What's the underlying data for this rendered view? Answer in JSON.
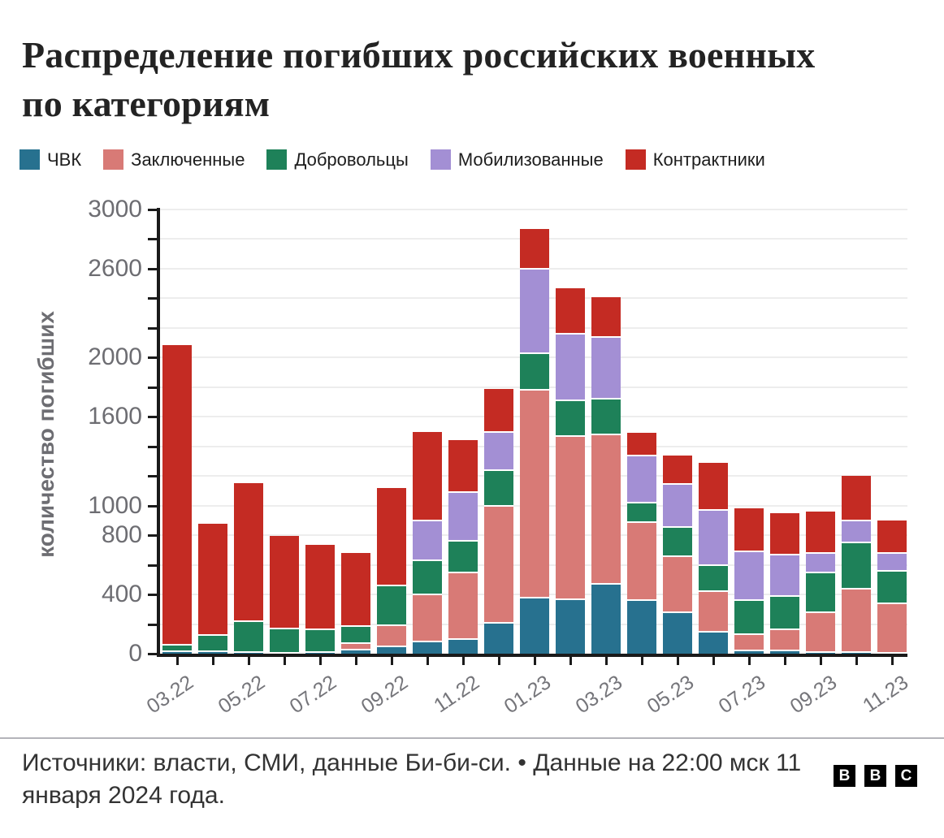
{
  "title": "Распределение погибших российских военных по категориям",
  "y_axis": {
    "title": "количество погибших"
  },
  "footer": {
    "source": "Источники: власти, СМИ, данные Би-би-си. • Данные на 22:00 мск 11 января 2024 года.",
    "logo_letters": [
      "B",
      "B",
      "C"
    ]
  },
  "chart_data": {
    "type": "bar",
    "stacked": true,
    "title": "Распределение погибших российских военных по категориям",
    "xlabel": "",
    "ylabel": "количество погибших",
    "ylim": [
      0,
      3000
    ],
    "grid": true,
    "legend_position": "top",
    "categories": [
      "03.22",
      "04.22",
      "05.22",
      "06.22",
      "07.22",
      "08.22",
      "09.22",
      "10.22",
      "11.22",
      "12.22",
      "01.23",
      "02.23",
      "03.23",
      "04.23",
      "05.23",
      "06.23",
      "07.23",
      "08.23",
      "09.23",
      "10.23",
      "11.23"
    ],
    "x_tick_labels": [
      "03.22",
      "05.22",
      "07.22",
      "09.22",
      "11.22",
      "01.23",
      "03.23",
      "05.23",
      "07.23",
      "09.23",
      "11.23"
    ],
    "y_tick_labels": [
      "0",
      "400",
      "800",
      "1000",
      "1600",
      "2000",
      "2600",
      "3000"
    ],
    "series": [
      {
        "name": "ЧВК",
        "color": "#27718f",
        "values": [
          15,
          15,
          10,
          5,
          10,
          30,
          50,
          80,
          100,
          210,
          380,
          370,
          470,
          360,
          280,
          150,
          20,
          20,
          10,
          10,
          5
        ]
      },
      {
        "name": "Заключенные",
        "color": "#d87a76",
        "values": [
          0,
          0,
          0,
          0,
          0,
          40,
          140,
          320,
          450,
          790,
          1400,
          1100,
          1010,
          530,
          380,
          270,
          110,
          145,
          270,
          430,
          335
        ]
      },
      {
        "name": "Добровольцы",
        "color": "#1e8159",
        "values": [
          45,
          110,
          210,
          165,
          155,
          115,
          270,
          230,
          210,
          240,
          250,
          240,
          240,
          130,
          195,
          180,
          230,
          225,
          270,
          310,
          220
        ]
      },
      {
        "name": "Мобилизованные",
        "color": "#a38fd4",
        "values": [
          0,
          0,
          0,
          0,
          0,
          0,
          0,
          270,
          330,
          260,
          570,
          450,
          420,
          320,
          290,
          370,
          330,
          280,
          130,
          150,
          120
        ]
      },
      {
        "name": "Контрактники",
        "color": "#c42b23",
        "values": [
          2025,
          750,
          930,
          625,
          570,
          495,
          660,
          600,
          350,
          290,
          270,
          310,
          270,
          150,
          195,
          320,
          290,
          280,
          280,
          300,
          220
        ]
      }
    ]
  }
}
